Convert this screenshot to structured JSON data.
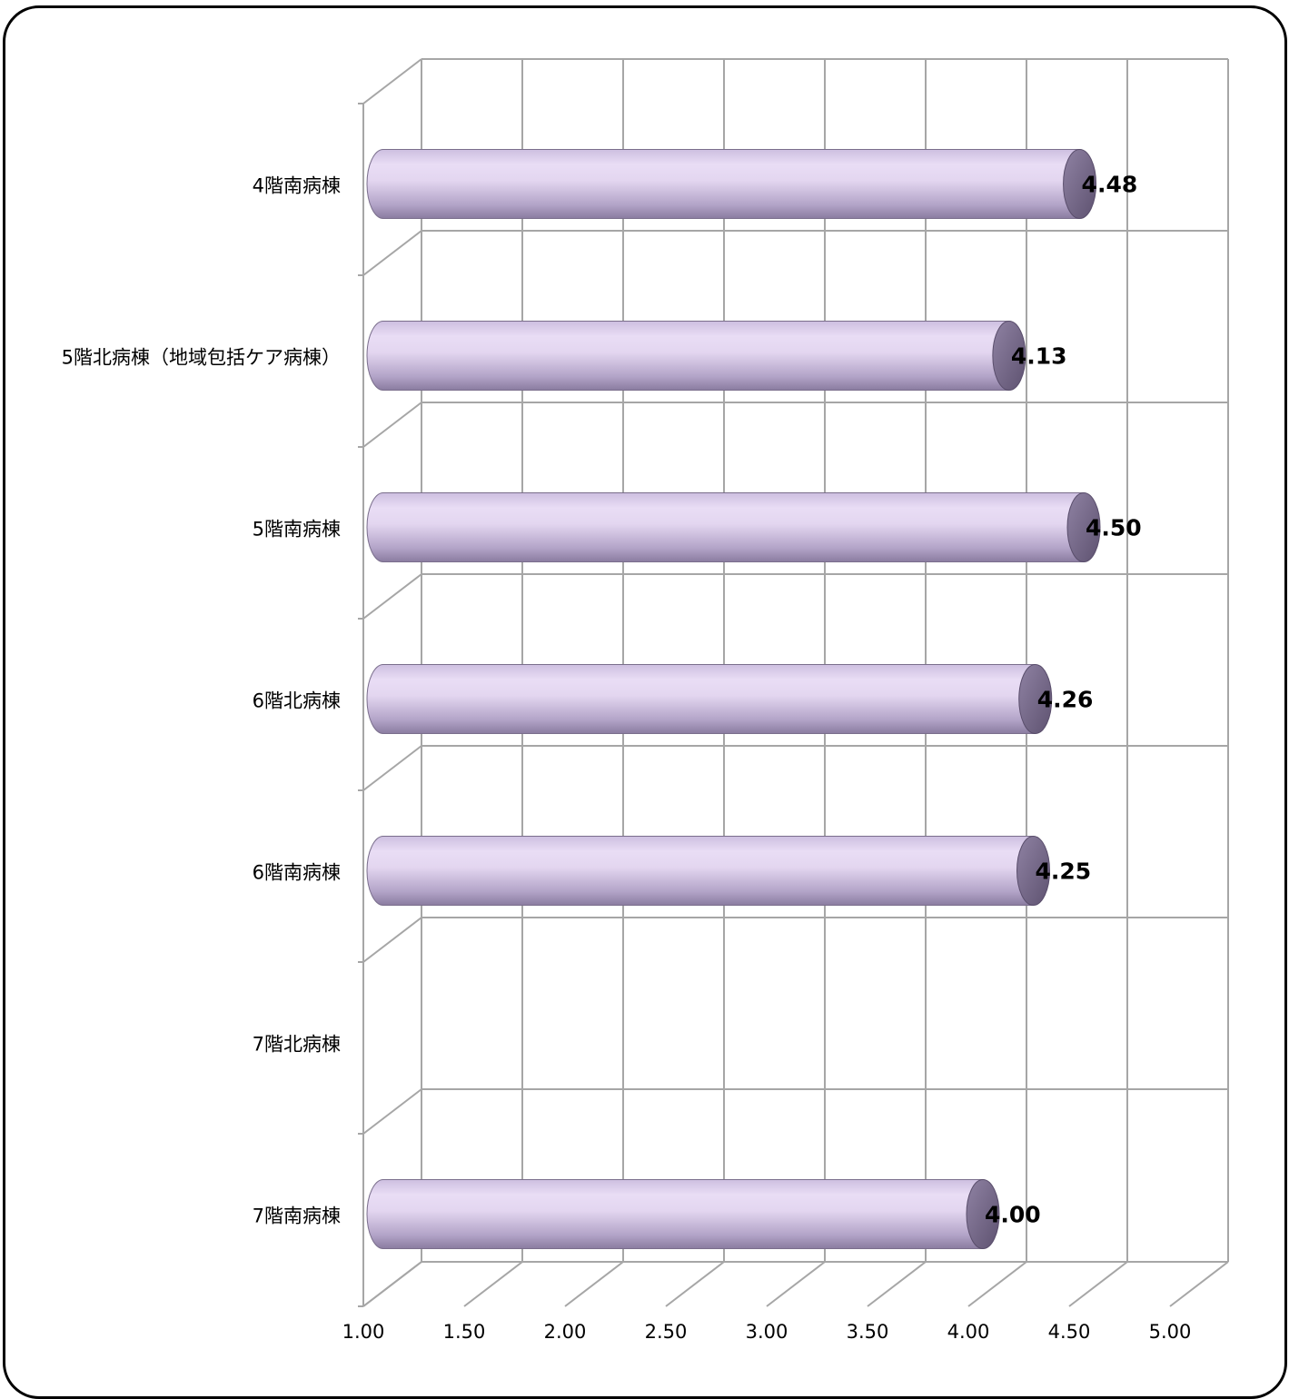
{
  "chart_data": {
    "type": "bar",
    "orientation": "horizontal",
    "categories": [
      "4階南病棟",
      "5階北病棟（地域包括ケア病棟）",
      "5階南病棟",
      "6階北病棟",
      "6階南病棟",
      "7階北病棟",
      "7階南病棟"
    ],
    "values": [
      4.48,
      4.13,
      4.5,
      4.26,
      4.25,
      null,
      4.0
    ],
    "value_labels": [
      "4.48",
      "4.13",
      "4.50",
      "4.26",
      "4.25",
      "",
      "4.00"
    ],
    "x_ticks": [
      "1.00",
      "1.50",
      "2.00",
      "2.50",
      "3.00",
      "3.50",
      "4.00",
      "4.50",
      "5.00"
    ],
    "xlim": [
      1.0,
      5.0
    ],
    "grid": true,
    "style": "3d-cylinder",
    "colors": {
      "bar_light": "#e9ddf5",
      "bar_mid": "#c9b8de",
      "bar_dark": "#6d6080",
      "grid": "#a6a6a6",
      "text": "#000000"
    }
  }
}
